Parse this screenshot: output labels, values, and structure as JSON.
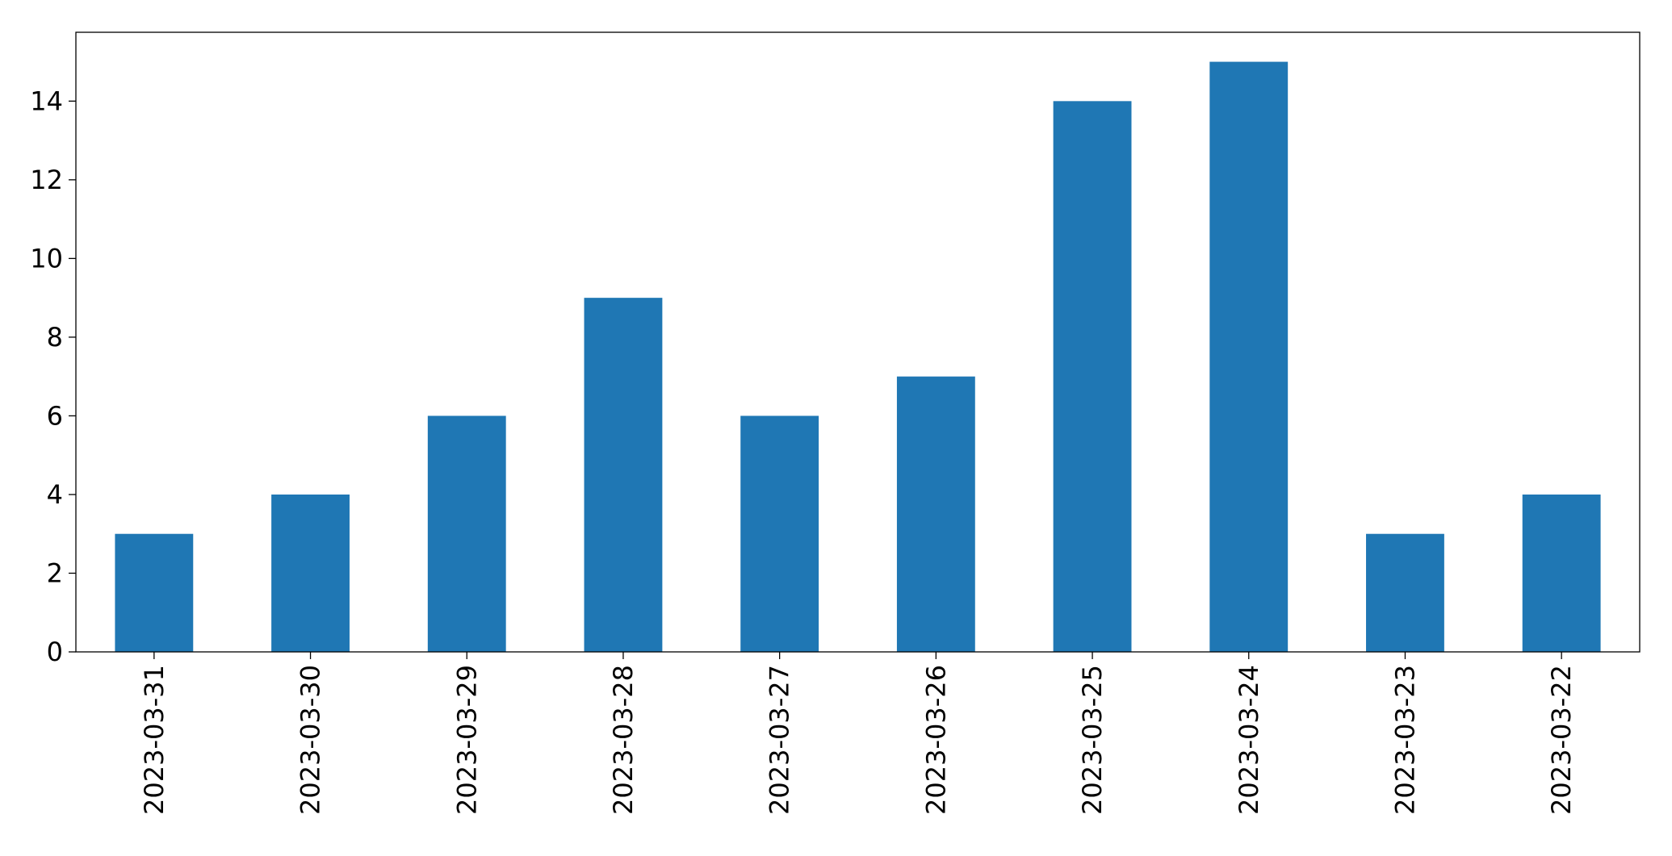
{
  "chart_data": {
    "type": "bar",
    "categories": [
      "2023-03-31",
      "2023-03-30",
      "2023-03-29",
      "2023-03-28",
      "2023-03-27",
      "2023-03-26",
      "2023-03-25",
      "2023-03-24",
      "2023-03-23",
      "2023-03-22"
    ],
    "values": [
      3,
      4,
      6,
      9,
      6,
      7,
      14,
      15,
      3,
      4
    ],
    "color": "#1f77b4",
    "ylim": [
      0,
      15.75
    ],
    "yticks": [
      0,
      2,
      4,
      6,
      8,
      10,
      12,
      14
    ],
    "grid": false
  }
}
